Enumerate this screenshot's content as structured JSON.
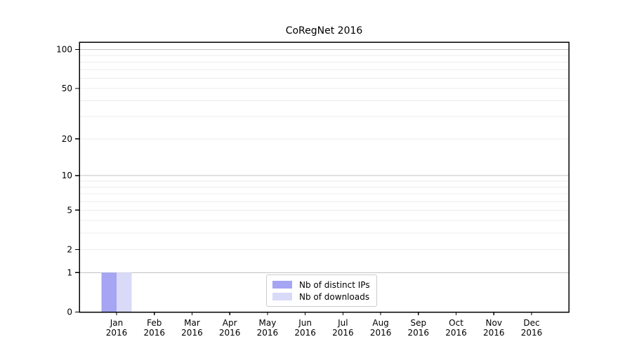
{
  "chart_data": {
    "type": "bar",
    "title": "CoRegNet 2016",
    "categories": [
      "Jan",
      "Feb",
      "Mar",
      "Apr",
      "May",
      "Jun",
      "Jul",
      "Aug",
      "Sep",
      "Oct",
      "Nov",
      "Dec"
    ],
    "x_tick_labels": [
      [
        "Jan",
        "2016"
      ],
      [
        "Feb",
        "2016"
      ],
      [
        "Mar",
        "2016"
      ],
      [
        "Apr",
        "2016"
      ],
      [
        "May",
        "2016"
      ],
      [
        "Jun",
        "2016"
      ],
      [
        "Jul",
        "2016"
      ],
      [
        "Aug",
        "2016"
      ],
      [
        "Sep",
        "2016"
      ],
      [
        "Oct",
        "2016"
      ],
      [
        "Nov",
        "2016"
      ],
      [
        "Dec",
        "2016"
      ]
    ],
    "series": [
      {
        "name": "Nb of distinct IPs",
        "color": "#a5a5f3",
        "values": [
          1,
          0,
          0,
          0,
          0,
          0,
          0,
          0,
          0,
          0,
          0,
          0
        ]
      },
      {
        "name": "Nb of downloads",
        "color": "#d9d9f8",
        "values": [
          1,
          0,
          0,
          0,
          0,
          0,
          0,
          0,
          0,
          0,
          0,
          0
        ]
      }
    ],
    "xlabel": "",
    "ylabel": "",
    "yscale": "log1p",
    "ylim": [
      0,
      114
    ],
    "yticks": [
      0,
      1,
      2,
      5,
      10,
      20,
      50,
      100
    ],
    "major_grid_values": [
      1,
      10,
      100
    ],
    "minor_grid_values": [
      2,
      3,
      4,
      5,
      6,
      7,
      8,
      9,
      20,
      30,
      40,
      50,
      60,
      70,
      80,
      90
    ],
    "grid": "horizontal",
    "legend_position": "lower-center-inside",
    "colors": {
      "background": "#ffffff",
      "axis": "#000000",
      "tick_label": "#000000",
      "major_grid": "#c3c3c3",
      "minor_grid": "#ececec"
    }
  }
}
